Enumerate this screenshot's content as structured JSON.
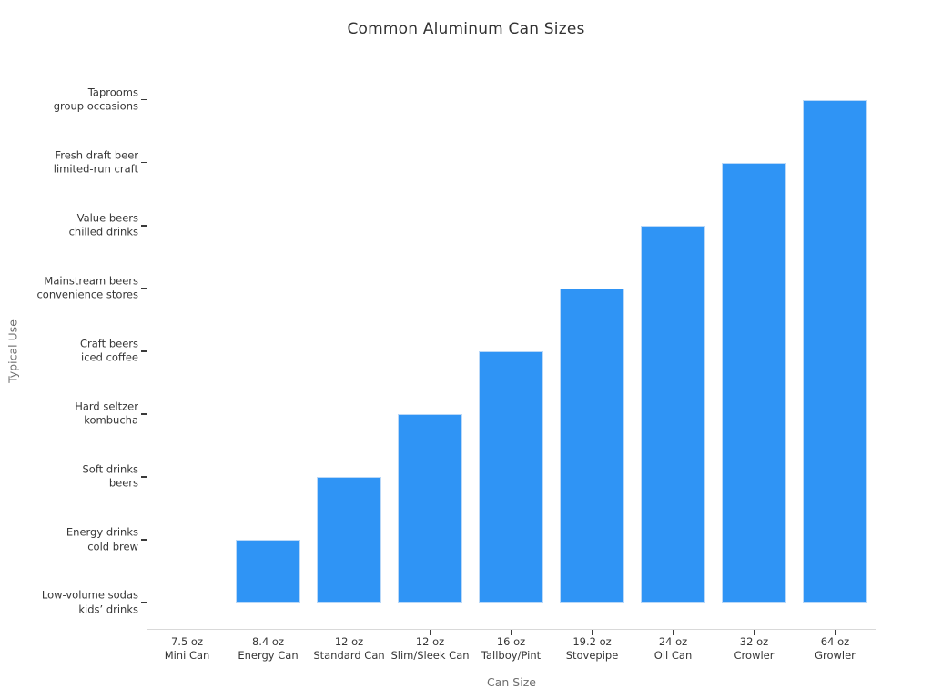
{
  "chart_data": {
    "type": "bar",
    "title": "Common Aluminum Can Sizes",
    "xlabel": "Can Size",
    "ylabel": "Typical Use",
    "categories": [
      "7.5 oz\nMini Can",
      "8.4 oz\nEnergy Can",
      "12 oz\nStandard Can",
      "12 oz\nSlim/Sleek Can",
      "16 oz\nTallboy/Pint",
      "19.2 oz\nStovepipe",
      "24 oz\nOil Can",
      "32 oz\nCrowler",
      "64 oz\nGrowler"
    ],
    "values": [
      0,
      1,
      2,
      3,
      4,
      5,
      6,
      7,
      8
    ],
    "ytick_values": [
      0,
      1,
      2,
      3,
      4,
      5,
      6,
      7,
      8
    ],
    "ytick_labels": [
      "Low-volume sodas\nkids’ drinks",
      "Energy drinks\ncold brew",
      "Soft drinks\nbeers",
      "Hard seltzer\nkombucha",
      "Craft beers\niced coffee",
      "Mainstream beers\nconvenience stores",
      "Value beers\nchilled drinks",
      "Fresh draft beer\nlimited-run craft",
      "Taprooms\ngroup occasions"
    ],
    "ylim": [
      -0.42,
      8.4
    ],
    "bar_width_fraction": 0.8,
    "grid": false,
    "legend": null,
    "colors": {
      "background": "#ffffff",
      "bar": "#2f94f5",
      "bar_edge": "#b9d8f8",
      "spine": "#d9d9d9",
      "tick": "#3a3a3a",
      "tick_label": "#363636",
      "axis_label": "#6e6e6e",
      "title": "#323232"
    }
  }
}
